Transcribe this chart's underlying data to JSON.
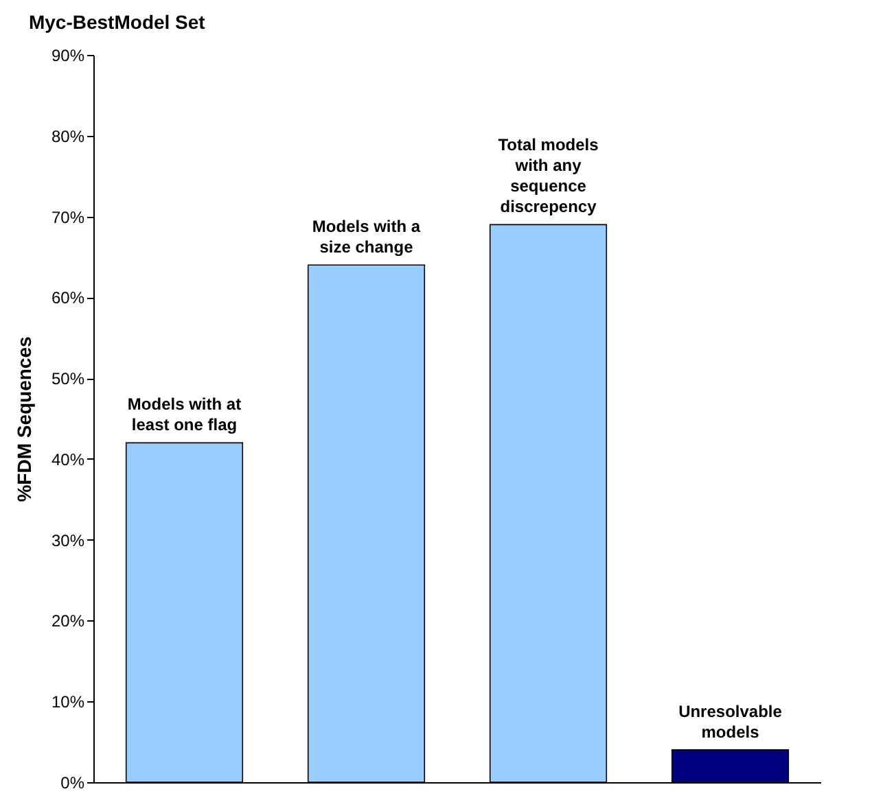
{
  "chart_data": {
    "type": "bar",
    "title": "Myc-BestModel Set",
    "ylabel": "%FDM Sequences",
    "categories": [
      "Models with at least one flag",
      "Models with a size change",
      "Total models with any sequence discrepency",
      "Unresolvable models"
    ],
    "values": [
      42,
      64,
      69,
      4
    ],
    "colors": [
      "#99ccff",
      "#99ccff",
      "#99ccff",
      "#000080"
    ],
    "ylim": [
      0,
      90
    ],
    "yticks": [
      {
        "value": 0,
        "label": "0%"
      },
      {
        "value": 10,
        "label": "10%"
      },
      {
        "value": 20,
        "label": "20%"
      },
      {
        "value": 30,
        "label": "30%"
      },
      {
        "value": 40,
        "label": "40%"
      },
      {
        "value": 50,
        "label": "50%"
      },
      {
        "value": 60,
        "label": "60%"
      },
      {
        "value": 70,
        "label": "70%"
      },
      {
        "value": 80,
        "label": "80%"
      },
      {
        "value": 90,
        "label": "90%"
      }
    ],
    "grid": false
  }
}
